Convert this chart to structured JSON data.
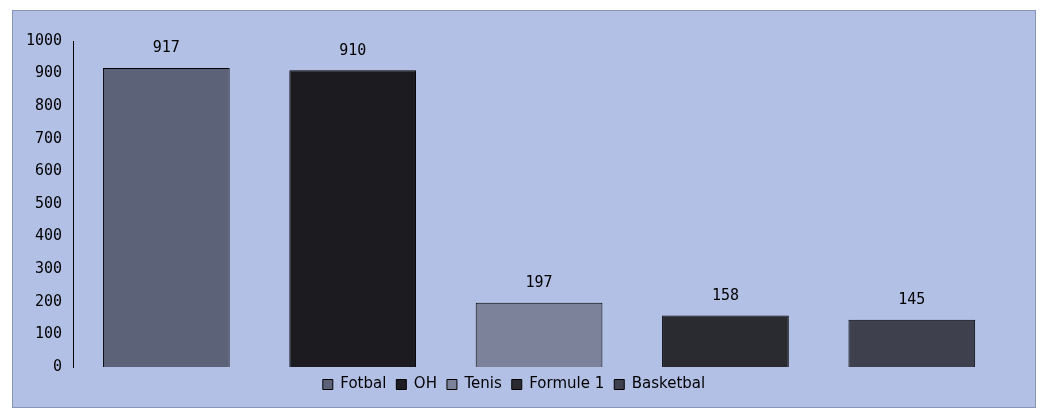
{
  "chart_data": {
    "type": "bar",
    "categories": [
      null,
      null,
      null,
      null,
      null
    ],
    "stacked": true,
    "series": [
      {
        "name": "Fotbal",
        "color": "#5c6379",
        "values": [
          917,
          null,
          null,
          null,
          null
        ]
      },
      {
        "name": "OH",
        "color": "#1c1c20",
        "values": [
          null,
          910,
          null,
          null,
          null
        ]
      },
      {
        "name": "Tenis",
        "color": "#7c8299",
        "values": [
          null,
          null,
          197,
          null,
          null
        ]
      },
      {
        "name": "Formule 1",
        "color": "#2a2a31",
        "values": [
          null,
          null,
          null,
          158,
          null
        ]
      },
      {
        "name": "Basketbal",
        "color": "#3e404d",
        "values": [
          null,
          null,
          null,
          null,
          145
        ]
      }
    ],
    "ylim": [
      0,
      1000
    ],
    "yticks": [
      0,
      100,
      200,
      300,
      400,
      500,
      600,
      700,
      800,
      900,
      1000
    ],
    "data_labels": true,
    "legend": "bottom",
    "grid": false,
    "tick_labels": "y"
  }
}
